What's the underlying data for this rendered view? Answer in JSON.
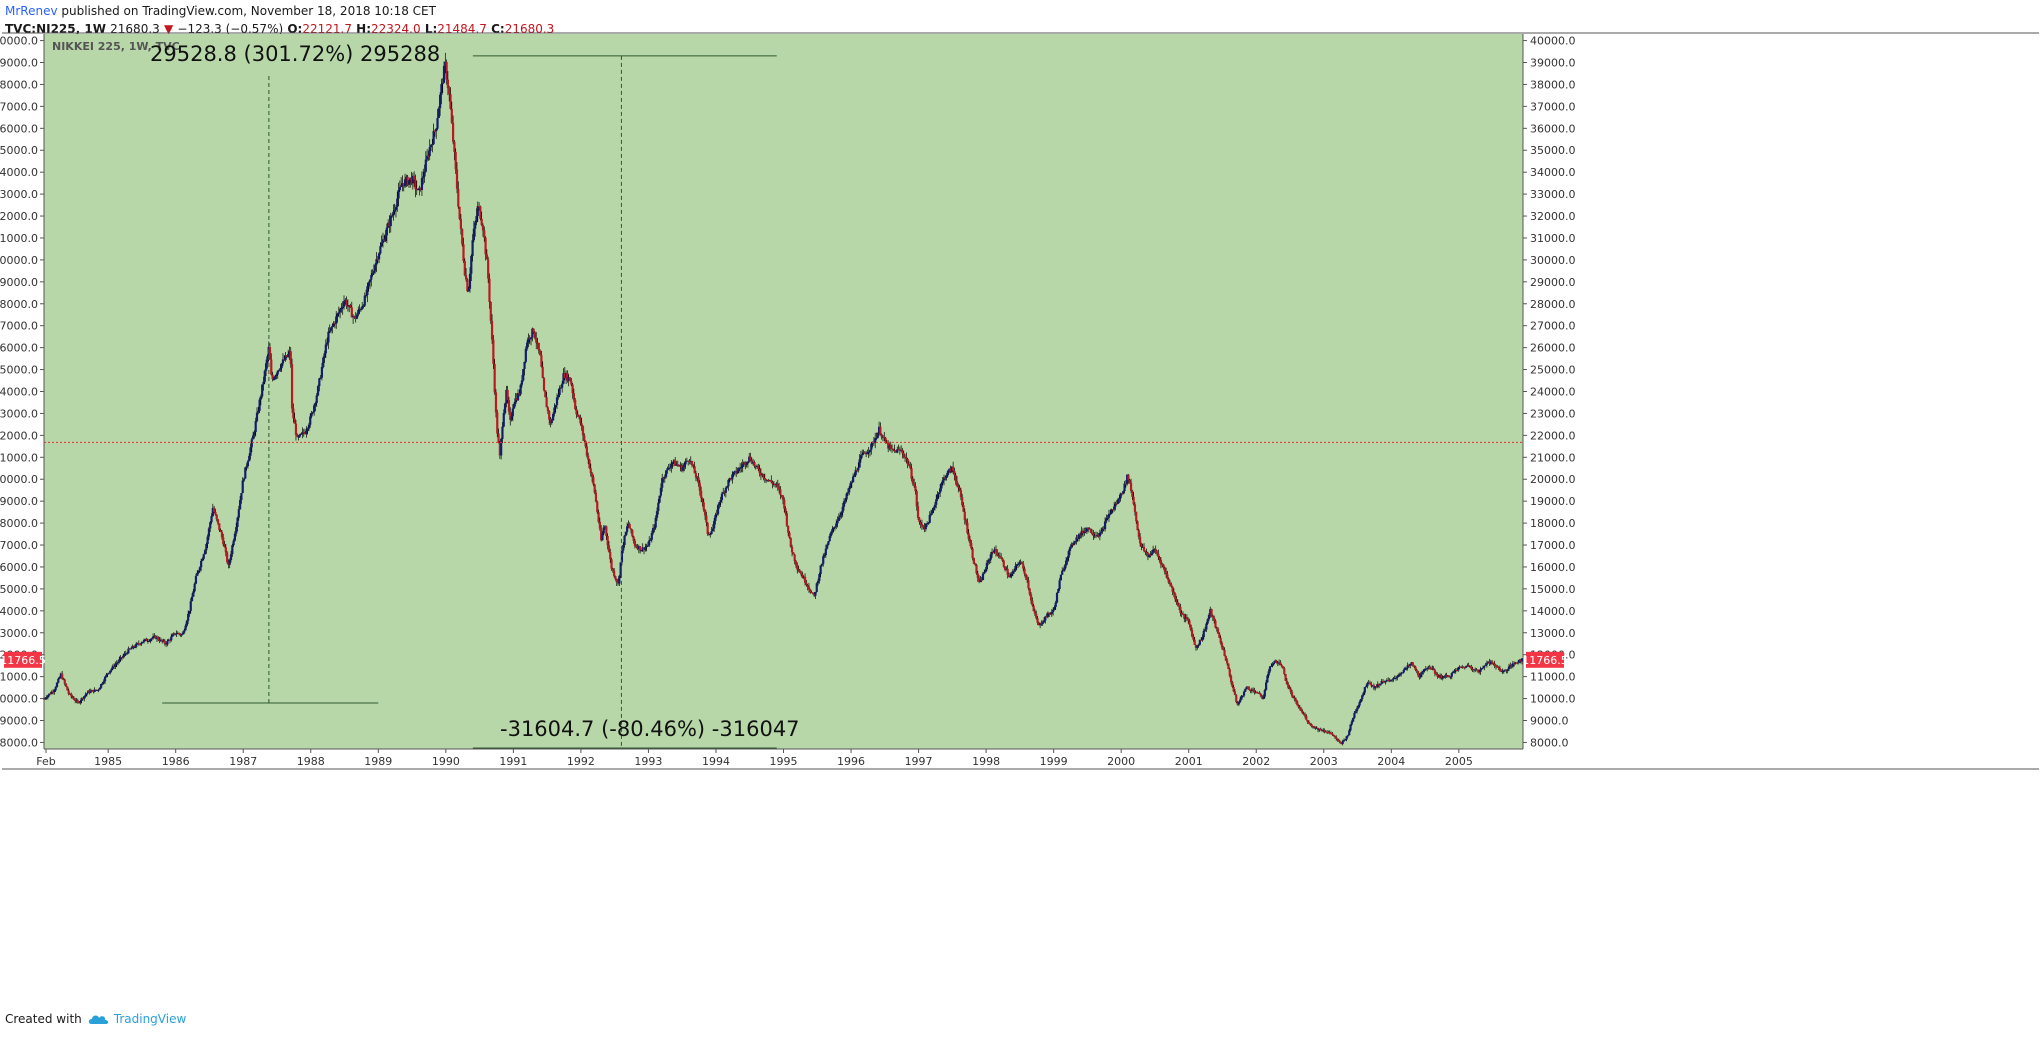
{
  "header": {
    "author": "MrRenev",
    "published": " published on TradingView.com, November 18, 2018 10:18 CET",
    "symbol": "TVC:NI225, 1W",
    "price": "21680.3",
    "change": "−123.3 (−0.57%)",
    "o_label": "O:",
    "o_value": "22121.7",
    "h_label": "H:",
    "h_value": "22324.0",
    "l_label": "L:",
    "l_value": "21484.7",
    "c_label": "C:",
    "c_value": "21680.3"
  },
  "footer": {
    "created_with": "Created with",
    "brand": "TradingView"
  },
  "colors": {
    "background": "#b7d7a8",
    "up": "#131d6d",
    "down": "#b81a22",
    "price_line": "#e0332d",
    "badge": "#f23645"
  },
  "chart_data": {
    "type": "candlestick",
    "title": "NIKKEI 225, 1W, TVC",
    "x_axis": {
      "start": 1984.05,
      "end": 2005.95,
      "tick_labels": [
        "Feb",
        "1985",
        "1986",
        "1987",
        "1988",
        "1989",
        "1990",
        "1991",
        "1992",
        "1993",
        "1994",
        "1995",
        "1996",
        "1997",
        "1998",
        "1999",
        "2000",
        "2001",
        "2002",
        "2003",
        "2004",
        "2005"
      ],
      "tick_values": [
        1984.08,
        1985,
        1986,
        1987,
        1988,
        1989,
        1990,
        1991,
        1992,
        1993,
        1994,
        1995,
        1996,
        1997,
        1998,
        1999,
        2000,
        2001,
        2002,
        2003,
        2004,
        2005
      ]
    },
    "y_axis": {
      "min": 7700,
      "max": 40300,
      "tick_labels": [
        "8000.0",
        "9000.0",
        "10000.0",
        "11000.0",
        "12000.0",
        "13000.0",
        "14000.0",
        "15000.0",
        "16000.0",
        "17000.0",
        "18000.0",
        "19000.0",
        "20000.0",
        "21000.0",
        "22000.0",
        "23000.0",
        "24000.0",
        "25000.0",
        "26000.0",
        "27000.0",
        "28000.0",
        "29000.0",
        "30000.0",
        "31000.0",
        "32000.0",
        "33000.0",
        "34000.0",
        "35000.0",
        "36000.0",
        "37000.0",
        "38000.0",
        "39000.0",
        "40000.0"
      ],
      "tick_values": [
        8000,
        9000,
        10000,
        11000,
        12000,
        13000,
        14000,
        15000,
        16000,
        17000,
        18000,
        19000,
        20000,
        21000,
        22000,
        23000,
        24000,
        25000,
        26000,
        27000,
        28000,
        29000,
        30000,
        31000,
        32000,
        33000,
        34000,
        35000,
        36000,
        37000,
        38000,
        39000,
        40000
      ]
    },
    "price_line": 21680.3,
    "price_badge": "11766.5",
    "price_badge_value": 11766.5,
    "series_keypoints": [
      [
        1984.05,
        10000
      ],
      [
        1984.2,
        10400
      ],
      [
        1984.3,
        11100
      ],
      [
        1984.42,
        10200
      ],
      [
        1984.55,
        9800
      ],
      [
        1984.7,
        10300
      ],
      [
        1984.85,
        10400
      ],
      [
        1985.0,
        11200
      ],
      [
        1985.3,
        12200
      ],
      [
        1985.5,
        12600
      ],
      [
        1985.7,
        12800
      ],
      [
        1985.85,
        12500
      ],
      [
        1986.0,
        13000
      ],
      [
        1986.1,
        12900
      ],
      [
        1986.2,
        14000
      ],
      [
        1986.3,
        15500
      ],
      [
        1986.45,
        17000
      ],
      [
        1986.55,
        18700
      ],
      [
        1986.7,
        17200
      ],
      [
        1986.78,
        16000
      ],
      [
        1986.9,
        18000
      ],
      [
        1987.0,
        20000
      ],
      [
        1987.15,
        22000
      ],
      [
        1987.3,
        24500
      ],
      [
        1987.38,
        26000
      ],
      [
        1987.42,
        24500
      ],
      [
        1987.55,
        25200
      ],
      [
        1987.7,
        25800
      ],
      [
        1987.72,
        23200
      ],
      [
        1987.8,
        21800
      ],
      [
        1987.92,
        22200
      ],
      [
        1988.0,
        22800
      ],
      [
        1988.1,
        24000
      ],
      [
        1988.25,
        26500
      ],
      [
        1988.4,
        27500
      ],
      [
        1988.5,
        28200
      ],
      [
        1988.65,
        27300
      ],
      [
        1988.8,
        28200
      ],
      [
        1988.92,
        29500
      ],
      [
        1989.0,
        30300
      ],
      [
        1989.2,
        32000
      ],
      [
        1989.35,
        33500
      ],
      [
        1989.5,
        33700
      ],
      [
        1989.6,
        33000
      ],
      [
        1989.75,
        35000
      ],
      [
        1989.85,
        36000
      ],
      [
        1989.95,
        38200
      ],
      [
        1989.99,
        38900
      ],
      [
        1990.05,
        37500
      ],
      [
        1990.12,
        35000
      ],
      [
        1990.2,
        32000
      ],
      [
        1990.28,
        29500
      ],
      [
        1990.33,
        28500
      ],
      [
        1990.4,
        31000
      ],
      [
        1990.48,
        32500
      ],
      [
        1990.55,
        31500
      ],
      [
        1990.62,
        29500
      ],
      [
        1990.7,
        25500
      ],
      [
        1990.75,
        22500
      ],
      [
        1990.8,
        21000
      ],
      [
        1990.85,
        23000
      ],
      [
        1990.9,
        24000
      ],
      [
        1990.95,
        22500
      ],
      [
        1991.0,
        23500
      ],
      [
        1991.1,
        24000
      ],
      [
        1991.2,
        26300
      ],
      [
        1991.3,
        26800
      ],
      [
        1991.4,
        25500
      ],
      [
        1991.45,
        24000
      ],
      [
        1991.55,
        22500
      ],
      [
        1991.63,
        23500
      ],
      [
        1991.75,
        24800
      ],
      [
        1991.85,
        24500
      ],
      [
        1991.92,
        23200
      ],
      [
        1992.0,
        22500
      ],
      [
        1992.1,
        21000
      ],
      [
        1992.2,
        19500
      ],
      [
        1992.3,
        17200
      ],
      [
        1992.35,
        18000
      ],
      [
        1992.45,
        16000
      ],
      [
        1992.55,
        15200
      ],
      [
        1992.62,
        17000
      ],
      [
        1992.7,
        18000
      ],
      [
        1992.8,
        17000
      ],
      [
        1992.9,
        16800
      ],
      [
        1993.0,
        17000
      ],
      [
        1993.1,
        18000
      ],
      [
        1993.2,
        20000
      ],
      [
        1993.35,
        20800
      ],
      [
        1993.5,
        20500
      ],
      [
        1993.6,
        21000
      ],
      [
        1993.72,
        20000
      ],
      [
        1993.8,
        19000
      ],
      [
        1993.88,
        17500
      ],
      [
        1993.95,
        17700
      ],
      [
        1994.05,
        19000
      ],
      [
        1994.2,
        20000
      ],
      [
        1994.35,
        20500
      ],
      [
        1994.5,
        21000
      ],
      [
        1994.6,
        20500
      ],
      [
        1994.75,
        20000
      ],
      [
        1994.9,
        19700
      ],
      [
        1995.0,
        19000
      ],
      [
        1995.1,
        17000
      ],
      [
        1995.2,
        16000
      ],
      [
        1995.35,
        15200
      ],
      [
        1995.45,
        14600
      ],
      [
        1995.55,
        16000
      ],
      [
        1995.7,
        17500
      ],
      [
        1995.85,
        18500
      ],
      [
        1996.0,
        19800
      ],
      [
        1996.15,
        21000
      ],
      [
        1996.3,
        21500
      ],
      [
        1996.42,
        22300
      ],
      [
        1996.5,
        21700
      ],
      [
        1996.6,
        21300
      ],
      [
        1996.75,
        21300
      ],
      [
        1996.85,
        20700
      ],
      [
        1996.95,
        19500
      ],
      [
        1997.0,
        18000
      ],
      [
        1997.1,
        17800
      ],
      [
        1997.2,
        18500
      ],
      [
        1997.3,
        19500
      ],
      [
        1997.4,
        20200
      ],
      [
        1997.5,
        20500
      ],
      [
        1997.6,
        19500
      ],
      [
        1997.7,
        18000
      ],
      [
        1997.8,
        16500
      ],
      [
        1997.9,
        15200
      ],
      [
        1998.0,
        16000
      ],
      [
        1998.1,
        16800
      ],
      [
        1998.2,
        16500
      ],
      [
        1998.35,
        15500
      ],
      [
        1998.5,
        16300
      ],
      [
        1998.6,
        15500
      ],
      [
        1998.7,
        14000
      ],
      [
        1998.78,
        13300
      ],
      [
        1998.9,
        13800
      ],
      [
        1999.0,
        14000
      ],
      [
        1999.1,
        15500
      ],
      [
        1999.2,
        16500
      ],
      [
        1999.3,
        17200
      ],
      [
        1999.4,
        17500
      ],
      [
        1999.5,
        17800
      ],
      [
        1999.6,
        17500
      ],
      [
        1999.7,
        17500
      ],
      [
        1999.8,
        18300
      ],
      [
        1999.95,
        19000
      ],
      [
        2000.05,
        19700
      ],
      [
        2000.1,
        20200
      ],
      [
        2000.18,
        19000
      ],
      [
        2000.28,
        17000
      ],
      [
        2000.4,
        16500
      ],
      [
        2000.5,
        16800
      ],
      [
        2000.62,
        16000
      ],
      [
        2000.75,
        15000
      ],
      [
        2000.9,
        13800
      ],
      [
        2001.0,
        13500
      ],
      [
        2001.1,
        12300
      ],
      [
        2001.2,
        12800
      ],
      [
        2001.32,
        14000
      ],
      [
        2001.45,
        12800
      ],
      [
        2001.55,
        11800
      ],
      [
        2001.65,
        10500
      ],
      [
        2001.72,
        9700
      ],
      [
        2001.85,
        10500
      ],
      [
        2002.0,
        10300
      ],
      [
        2002.1,
        10000
      ],
      [
        2002.2,
        11500
      ],
      [
        2002.3,
        11700
      ],
      [
        2002.38,
        11500
      ],
      [
        2002.45,
        10700
      ],
      [
        2002.55,
        10000
      ],
      [
        2002.65,
        9500
      ],
      [
        2002.8,
        8800
      ],
      [
        2002.92,
        8600
      ],
      [
        2003.05,
        8500
      ],
      [
        2003.15,
        8300
      ],
      [
        2003.25,
        7900
      ],
      [
        2003.35,
        8300
      ],
      [
        2003.45,
        9300
      ],
      [
        2003.55,
        10000
      ],
      [
        2003.65,
        10800
      ],
      [
        2003.75,
        10500
      ],
      [
        2003.88,
        10800
      ],
      [
        2004.0,
        10800
      ],
      [
        2004.15,
        11200
      ],
      [
        2004.3,
        11600
      ],
      [
        2004.42,
        11000
      ],
      [
        2004.55,
        11500
      ],
      [
        2004.7,
        11000
      ],
      [
        2004.85,
        11000
      ],
      [
        2005.0,
        11400
      ],
      [
        2005.15,
        11500
      ],
      [
        2005.3,
        11200
      ],
      [
        2005.42,
        11700
      ],
      [
        2005.55,
        11500
      ],
      [
        2005.65,
        11200
      ],
      [
        2005.78,
        11500
      ],
      [
        2005.9,
        11766.5
      ]
    ],
    "annotations": {
      "range_up_label": "29528.8 (301.72%) 295288",
      "range_up_from": 9800,
      "range_up_to": 39300,
      "range_up_x": [
        1985.8,
        1989.0
      ],
      "range_up_mid_x": 1987.38,
      "range_down_label": "-31604.7 (-80.46%) -316047",
      "range_down_from": 39300,
      "range_down_to": 7700,
      "range_down_x": [
        1990.4,
        1994.9
      ],
      "range_down_mid_x": 1992.6
    }
  }
}
